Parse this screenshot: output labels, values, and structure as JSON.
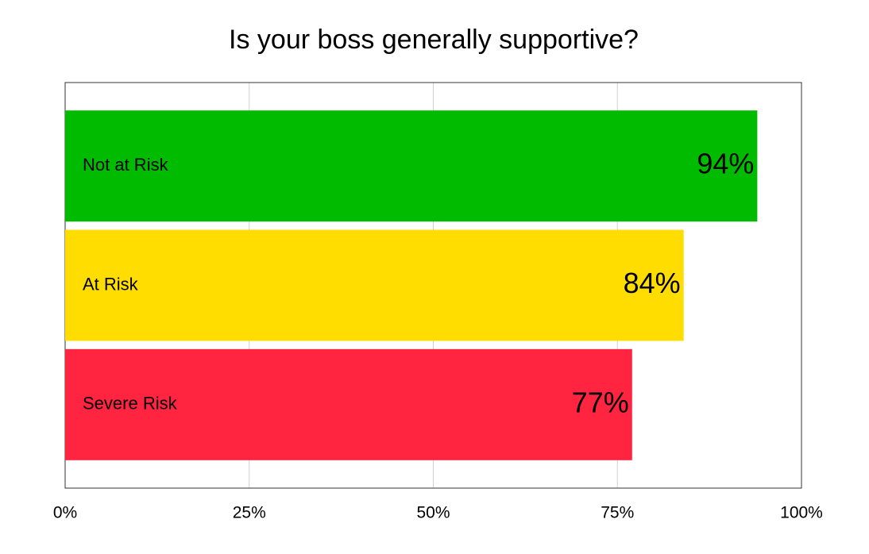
{
  "chart_data": {
    "type": "bar",
    "title": "Is your boss generally supportive?",
    "categories": [
      "Not at Risk",
      "At Risk",
      "Severe Risk"
    ],
    "values": [
      94,
      84,
      77
    ],
    "value_labels": [
      "94%",
      "84%",
      "77%"
    ],
    "colors": [
      "#00bb00",
      "#ffdd00",
      "#ff2440"
    ],
    "xlim": [
      0,
      100
    ],
    "xticks": [
      {
        "value": 0,
        "label": "0%"
      },
      {
        "value": 25,
        "label": "25%"
      },
      {
        "value": 50,
        "label": "50%"
      },
      {
        "value": 75,
        "label": "75%"
      },
      {
        "value": 100,
        "label": "100%"
      }
    ],
    "grid": true
  }
}
